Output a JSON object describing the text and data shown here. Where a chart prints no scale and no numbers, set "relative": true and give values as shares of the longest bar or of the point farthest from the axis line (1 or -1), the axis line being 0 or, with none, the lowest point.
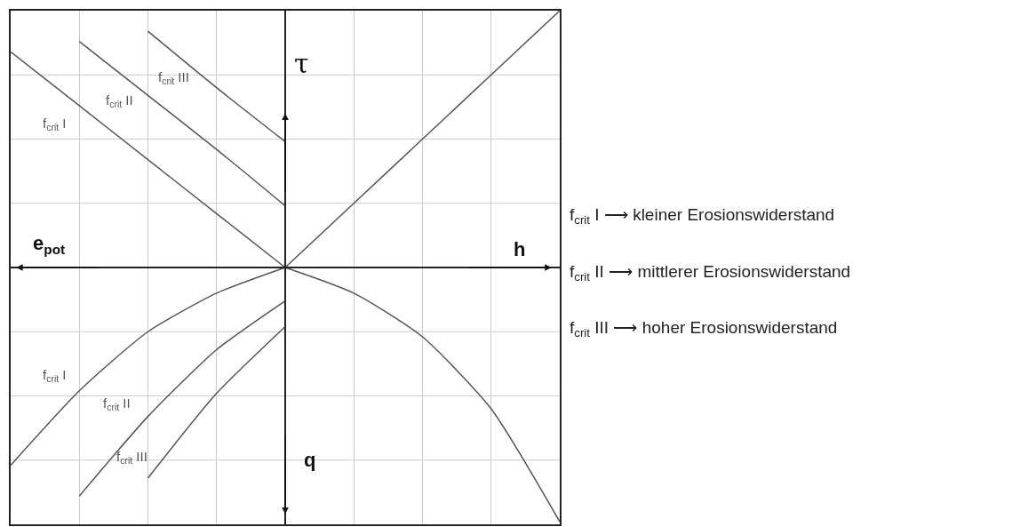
{
  "chart_data": {
    "type": "line",
    "relative": true,
    "grid": true,
    "legend": false,
    "marker": "none",
    "line_style": "solid",
    "xlabel": "h",
    "ylabel": "τ",
    "categories": [
      null,
      null,
      null,
      null,
      null,
      null,
      null,
      null,
      null
    ],
    "series": [
      {
        "name": "f$_{crit}$ I",
        "color": "#555555",
        "values": [
          0.84,
          0.63,
          0.42,
          0.21,
          0,
          null,
          null,
          null,
          null
        ]
      },
      {
        "name": "f$_{crit}$ II",
        "color": "#555555",
        "values": [
          null,
          0.88,
          0.67,
          0.46,
          0.24,
          null,
          null,
          null,
          null
        ]
      },
      {
        "name": "f$_{crit}$ III",
        "color": "#555555",
        "values": [
          null,
          null,
          0.92,
          0.7,
          0.49,
          null,
          null,
          null,
          null
        ]
      },
      {
        "color": "#555555",
        "values": [
          null,
          null,
          null,
          null,
          0,
          0.25,
          0.5,
          0.75,
          1
        ]
      },
      {
        "color": "#555555",
        "values": [
          null,
          null,
          null,
          null,
          0,
          -0.1,
          -0.27,
          -0.55,
          -0.99
        ]
      },
      {
        "name": "f$_{crit}$ I",
        "color": "#555555",
        "values": [
          -0.77,
          -0.48,
          -0.25,
          -0.1,
          0,
          null,
          null,
          null,
          null
        ]
      },
      {
        "name": "f$_{crit}$ II",
        "color": "#555555",
        "values": [
          null,
          -0.89,
          -0.58,
          -0.32,
          -0.13,
          null,
          null,
          null,
          null
        ]
      },
      {
        "name": "f$_{crit}$ III",
        "color": "#555555",
        "values": [
          null,
          null,
          -0.82,
          -0.49,
          -0.23,
          null,
          null,
          null,
          null
        ]
      }
    ],
    "annotations": [
      "e$_{pot}$",
      "q",
      "f$_{crit}$ I ⟶ kleiner Erosionswiderstand",
      "f$_{crit}$ II ⟶ mittlerer Erosionswiderstand",
      "f$_{crit}$ III ⟶ hoher Erosionswiderstand"
    ]
  }
}
